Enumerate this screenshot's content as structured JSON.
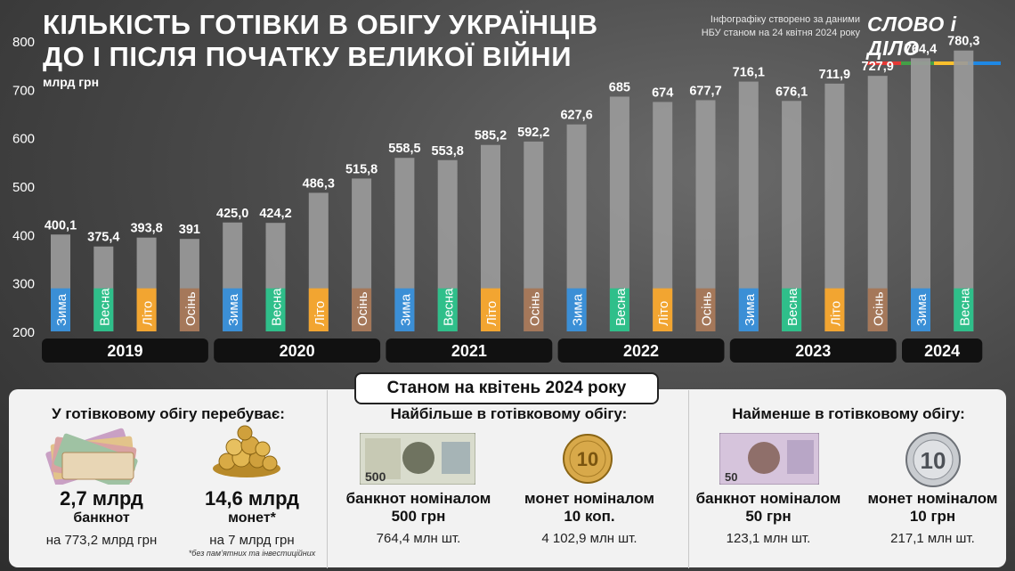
{
  "header": {
    "title_line1": "КІЛЬКІСТЬ ГОТІВКИ В ОБІГУ УКРАЇНЦІВ",
    "title_line2": "ДО І ПІСЛЯ ПОЧАТКУ ВЕЛИКОЇ ВІЙНИ",
    "unit": "млрд грн",
    "source_line1": "Інфографіку створено за даними",
    "source_line2": "НБУ станом на 24 квітня 2024 року",
    "logo": "СЛОВО і ДІЛО"
  },
  "colors": {
    "winter": "#3b8fd6",
    "spring": "#2fbf8a",
    "summer": "#f2a531",
    "autumn": "#a5785a",
    "bar": "#9a9a9a",
    "year_band": "#111111",
    "logo_bar": [
      "#e53935",
      "#43a047",
      "#fbc02d",
      "#1e88e5"
    ]
  },
  "chart_data": {
    "type": "bar",
    "ylabel": "млрд грн",
    "ylim": [
      200,
      800
    ],
    "yticks": [
      200,
      300,
      400,
      500,
      600,
      700,
      800
    ],
    "categories": [
      "Зима",
      "Весна",
      "Літо",
      "Осінь",
      "Зима",
      "Весна",
      "Літо",
      "Осінь",
      "Зима",
      "Весна",
      "Літо",
      "Осінь",
      "Зима",
      "Весна",
      "Літо",
      "Осінь",
      "Зима",
      "Весна",
      "Літо",
      "Осінь",
      "Зима",
      "Весна"
    ],
    "seasons": [
      "winter",
      "spring",
      "summer",
      "autumn",
      "winter",
      "spring",
      "summer",
      "autumn",
      "winter",
      "spring",
      "summer",
      "autumn",
      "winter",
      "spring",
      "summer",
      "autumn",
      "winter",
      "spring",
      "summer",
      "autumn",
      "winter",
      "spring"
    ],
    "values": [
      400.1,
      375.4,
      393.8,
      391,
      425.0,
      424.2,
      486.3,
      515.8,
      558.5,
      553.8,
      585.2,
      592.2,
      627.6,
      685,
      674,
      677.7,
      716.1,
      676.1,
      711.9,
      727.9,
      764.4,
      780.3
    ],
    "value_labels": [
      "400,1",
      "375,4",
      "393,8",
      "391",
      "425,0",
      "424,2",
      "486,3",
      "515,8",
      "558,5",
      "553,8",
      "585,2",
      "592,2",
      "627,6",
      "685",
      "674",
      "677,7",
      "716,1",
      "676,1",
      "711,9",
      "727,9",
      "764,4",
      "780,3"
    ],
    "years": [
      {
        "label": "2019",
        "bars": 4
      },
      {
        "label": "2020",
        "bars": 4
      },
      {
        "label": "2021",
        "bars": 4
      },
      {
        "label": "2022",
        "bars": 4
      },
      {
        "label": "2023",
        "bars": 4
      },
      {
        "label": "2024",
        "bars": 2
      }
    ]
  },
  "summary": {
    "as_of": "Станом на квітень 2024 року",
    "col1": {
      "head": "У готівковому обігу перебуває:",
      "item1": {
        "big": "2,7 млрд",
        "mid": "банкнот",
        "small": "на 773,2 млрд грн",
        "image": "banknotes-stack"
      },
      "item2": {
        "big": "14,6 млрд",
        "mid": "монет*",
        "small": "на 7 млрд грн",
        "note": "*без пам’ятних та інвестиційних",
        "image": "coins-pile"
      }
    },
    "col2": {
      "head": "Найбільше в готівковому обігу:",
      "item1": {
        "line1": "банкнот номіналом",
        "line2": "500 грн",
        "small": "764,4 млн шт.",
        "image": "banknote-500",
        "note_text": "500"
      },
      "item2": {
        "line1": "монет номіналом",
        "line2": "10 коп.",
        "small": "4 102,9 млн шт.",
        "image": "coin-10-kop",
        "coin_text": "10"
      }
    },
    "col3": {
      "head": "Найменше в готівковому обігу:",
      "item1": {
        "line1": "банкнот номіналом",
        "line2": "50 грн",
        "small": "123,1 млн шт.",
        "image": "banknote-50",
        "note_text": "50"
      },
      "item2": {
        "line1": "монет номіналом",
        "line2": "10 грн",
        "small": "217,1 млн шт.",
        "image": "coin-10-hrn",
        "coin_text": "10"
      }
    }
  }
}
